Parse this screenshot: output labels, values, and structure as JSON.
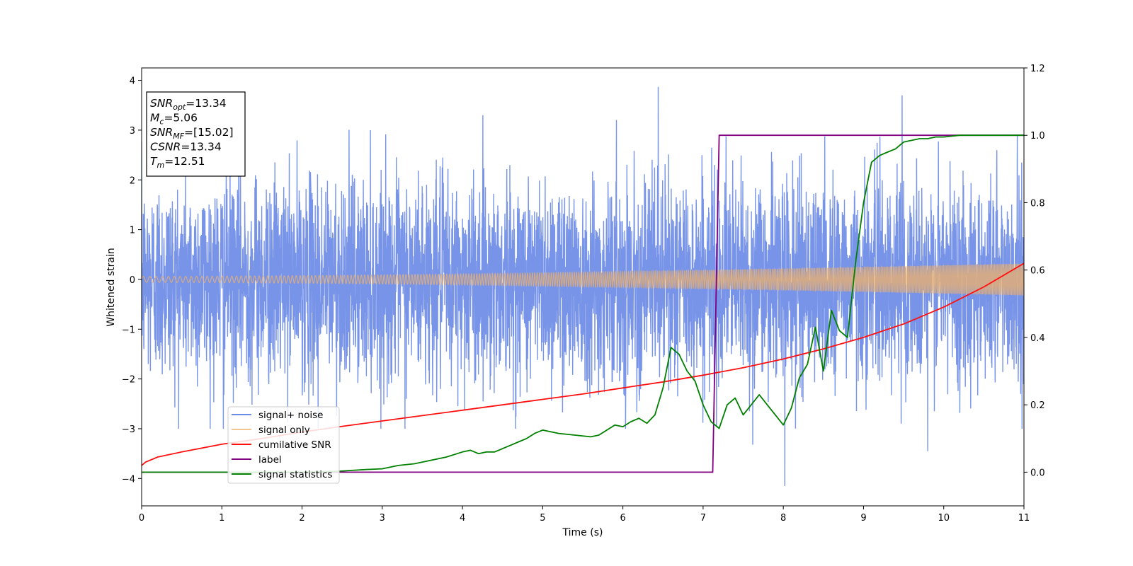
{
  "chart_data": {
    "type": "line",
    "xlabel": "Time (s)",
    "ylabel": "Whitened strain",
    "xlim": [
      0,
      11
    ],
    "ylim": [
      -4.55,
      4.25
    ],
    "y2lim": [
      -0.1,
      1.2
    ],
    "x_ticks": [
      "0",
      "1",
      "2",
      "3",
      "4",
      "5",
      "6",
      "7",
      "8",
      "9",
      "10",
      "11"
    ],
    "y_ticks": [
      "−4",
      "−3",
      "−2",
      "−1",
      "0",
      "1",
      "2",
      "3",
      "4"
    ],
    "y2_ticks": [
      "0.0",
      "0.2",
      "0.4",
      "0.6",
      "0.8",
      "1.0",
      "1.2"
    ],
    "annotation": {
      "lines": [
        {
          "var": "SNR",
          "sub": "opt",
          "value": "=13.34"
        },
        {
          "var": "M",
          "sub": "c",
          "value": "=5.06"
        },
        {
          "var": "SNR",
          "sub": "MF",
          "value": "=[15.02]"
        },
        {
          "var": "CSNR",
          "sub": "",
          "value": "=13.34"
        },
        {
          "var": "T",
          "sub": "m",
          "value": "=12.51"
        }
      ]
    },
    "legend": {
      "location": "lower-left",
      "entries": [
        "signal+ noise",
        "signal only",
        "cumilative SNR",
        "label",
        "signal statistics"
      ]
    },
    "series": [
      {
        "name": "signal+ noise",
        "axis": "left",
        "color": "#6c8be6",
        "kind": "noise",
        "mean": 0,
        "std": 1.0,
        "peak_values": [
          [
            6.44,
            3.87
          ],
          [
            9.48,
            3.7
          ],
          [
            8.02,
            -4.15
          ],
          [
            7.62,
            -3.32
          ],
          [
            9.8,
            -3.45
          ],
          [
            1.02,
            -3.0
          ],
          [
            2.2,
            -3.0
          ]
        ],
        "samples_per_sec": 420
      },
      {
        "name": "signal only",
        "axis": "left",
        "color": "#f0b26a",
        "kind": "chirp",
        "amplitude_start": 0.06,
        "amplitude_end": 0.32,
        "frequency_start": 12,
        "frequency_end": 60
      },
      {
        "name": "cumilative SNR",
        "axis": "right",
        "color": "#ff1010",
        "x": [
          0,
          0.05,
          0.2,
          0.5,
          1,
          1.5,
          2,
          2.5,
          3,
          3.5,
          4,
          4.5,
          5,
          5.5,
          6,
          6.5,
          7,
          7.5,
          8,
          8.5,
          9,
          9.5,
          10,
          10.5,
          11
        ],
        "y": [
          0.02,
          0.03,
          0.045,
          0.06,
          0.083,
          0.1,
          0.119,
          0.136,
          0.152,
          0.168,
          0.184,
          0.2,
          0.216,
          0.232,
          0.25,
          0.268,
          0.288,
          0.31,
          0.336,
          0.366,
          0.4,
          0.44,
          0.49,
          0.55,
          0.62
        ]
      },
      {
        "name": "label",
        "axis": "right",
        "color": "#800080",
        "x": [
          0,
          7.12,
          7.2,
          11
        ],
        "y": [
          0,
          0,
          1,
          1
        ]
      },
      {
        "name": "signal statistics",
        "axis": "right",
        "color": "#008000",
        "x": [
          0,
          1.0,
          2.0,
          2.4,
          2.6,
          2.8,
          3.0,
          3.1,
          3.2,
          3.4,
          3.6,
          3.8,
          4.0,
          4.1,
          4.2,
          4.3,
          4.4,
          4.5,
          4.6,
          4.7,
          4.8,
          4.9,
          5.0,
          5.1,
          5.2,
          5.4,
          5.6,
          5.7,
          5.8,
          5.9,
          6.0,
          6.1,
          6.2,
          6.3,
          6.4,
          6.5,
          6.6,
          6.7,
          6.8,
          6.9,
          7.0,
          7.1,
          7.2,
          7.3,
          7.4,
          7.5,
          7.6,
          7.7,
          7.8,
          7.9,
          8.0,
          8.1,
          8.2,
          8.3,
          8.4,
          8.5,
          8.6,
          8.7,
          8.8,
          8.9,
          9.0,
          9.1,
          9.2,
          9.3,
          9.4,
          9.5,
          9.6,
          9.7,
          9.8,
          9.9,
          10.0,
          10.2,
          10.5,
          11.0
        ],
        "y": [
          0.0,
          0.0,
          0.0,
          0.002,
          0.005,
          0.008,
          0.01,
          0.015,
          0.02,
          0.025,
          0.035,
          0.045,
          0.06,
          0.065,
          0.055,
          0.06,
          0.06,
          0.07,
          0.08,
          0.09,
          0.1,
          0.115,
          0.125,
          0.12,
          0.115,
          0.11,
          0.105,
          0.11,
          0.125,
          0.14,
          0.135,
          0.15,
          0.16,
          0.145,
          0.17,
          0.25,
          0.37,
          0.35,
          0.3,
          0.27,
          0.2,
          0.15,
          0.13,
          0.2,
          0.22,
          0.17,
          0.2,
          0.23,
          0.2,
          0.17,
          0.14,
          0.19,
          0.28,
          0.32,
          0.43,
          0.3,
          0.48,
          0.42,
          0.4,
          0.62,
          0.8,
          0.92,
          0.94,
          0.95,
          0.96,
          0.98,
          0.985,
          0.99,
          0.99,
          0.995,
          0.995,
          1.0,
          1.0,
          1.0
        ]
      }
    ]
  }
}
